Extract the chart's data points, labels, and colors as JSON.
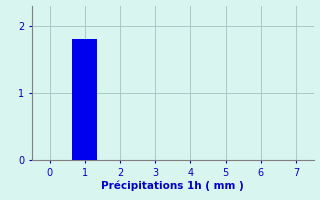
{
  "bar_x": [
    1
  ],
  "bar_height": [
    1.8
  ],
  "bar_color": "#0000ee",
  "bar_width": 0.7,
  "xlim": [
    -0.5,
    7.5
  ],
  "ylim": [
    0,
    2.3
  ],
  "xticks": [
    0,
    1,
    2,
    3,
    4,
    5,
    6,
    7
  ],
  "yticks": [
    0,
    1,
    2
  ],
  "xlabel": "Précipitations 1h ( mm )",
  "xlabel_color": "#0000cc",
  "xlabel_fontsize": 7.5,
  "tick_color": "#0000cc",
  "tick_fontsize": 7,
  "background_color": "#d8f5f0",
  "grid_color": "#aac8c4",
  "spine_color": "#808080"
}
